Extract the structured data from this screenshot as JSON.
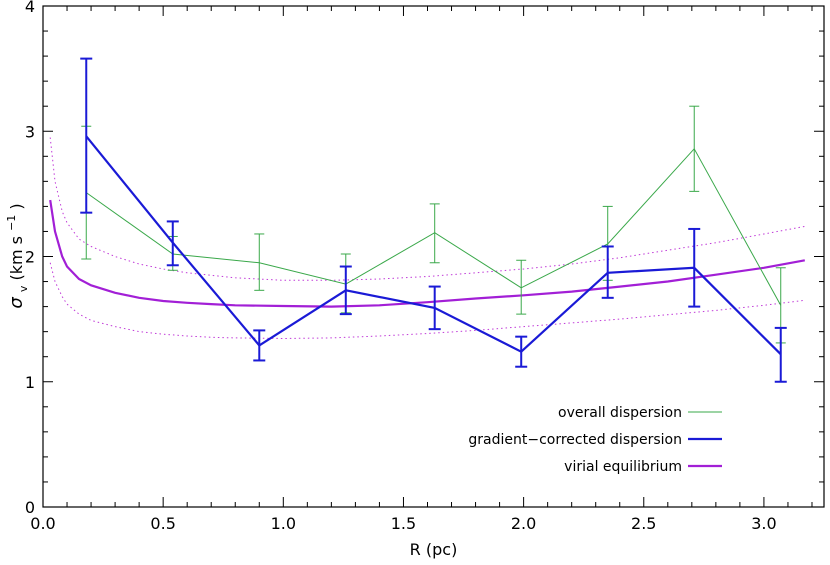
{
  "chart_data": {
    "type": "line",
    "title": "",
    "xlabel": "R (pc)",
    "ylabel": {
      "symbol": "σ",
      "subscript": "v",
      "units_open": " (km s",
      "units_exp": "−1",
      "units_close": ")"
    },
    "xlim": [
      0.0,
      3.25
    ],
    "ylim": [
      0,
      4
    ],
    "x_ticks": [
      0.0,
      0.5,
      1.0,
      1.5,
      2.0,
      2.5,
      3.0
    ],
    "x_tick_labels": [
      "0.0",
      "0.5",
      "1.0",
      "1.5",
      "2.0",
      "2.5",
      "3.0"
    ],
    "y_ticks": [
      0,
      1,
      2,
      3,
      4
    ],
    "y_tick_labels": [
      "0",
      "1",
      "2",
      "3",
      "4"
    ],
    "grid": false,
    "legend_position": "bottom-right",
    "series": [
      {
        "name": "overall dispersion",
        "color": "#3aa84a",
        "style": "solid-thin",
        "points": [
          {
            "x": 0.18,
            "y": 2.51,
            "err_lo": 1.98,
            "err_hi": 3.04
          },
          {
            "x": 0.54,
            "y": 2.02,
            "err_lo": 1.89,
            "err_hi": 2.16
          },
          {
            "x": 0.9,
            "y": 1.95,
            "err_lo": 1.73,
            "err_hi": 2.18
          },
          {
            "x": 1.26,
            "y": 1.78,
            "err_lo": 1.55,
            "err_hi": 2.02
          },
          {
            "x": 1.63,
            "y": 2.19,
            "err_lo": 1.95,
            "err_hi": 2.42
          },
          {
            "x": 1.99,
            "y": 1.75,
            "err_lo": 1.54,
            "err_hi": 1.97
          },
          {
            "x": 2.35,
            "y": 2.1,
            "err_lo": 1.81,
            "err_hi": 2.4
          },
          {
            "x": 2.71,
            "y": 2.86,
            "err_lo": 2.52,
            "err_hi": 3.2
          },
          {
            "x": 3.07,
            "y": 1.61,
            "err_lo": 1.31,
            "err_hi": 1.91
          }
        ]
      },
      {
        "name": "gradient−corrected dispersion",
        "color": "#1a1ad6",
        "style": "solid-thick",
        "points": [
          {
            "x": 0.18,
            "y": 2.96,
            "err_lo": 2.35,
            "err_hi": 3.58
          },
          {
            "x": 0.54,
            "y": 2.11,
            "err_lo": 1.93,
            "err_hi": 2.28
          },
          {
            "x": 0.9,
            "y": 1.29,
            "err_lo": 1.17,
            "err_hi": 1.41
          },
          {
            "x": 1.26,
            "y": 1.73,
            "err_lo": 1.54,
            "err_hi": 1.92
          },
          {
            "x": 1.63,
            "y": 1.59,
            "err_lo": 1.42,
            "err_hi": 1.76
          },
          {
            "x": 1.99,
            "y": 1.24,
            "err_lo": 1.12,
            "err_hi": 1.36
          },
          {
            "x": 2.35,
            "y": 1.87,
            "err_lo": 1.67,
            "err_hi": 2.08
          },
          {
            "x": 2.71,
            "y": 1.91,
            "err_lo": 1.6,
            "err_hi": 2.22
          },
          {
            "x": 3.07,
            "y": 1.22,
            "err_lo": 1.0,
            "err_hi": 1.43
          }
        ]
      },
      {
        "name": "virial equilibrium",
        "color": "#a21fd6",
        "style": "solid-thick",
        "x": [
          0.03,
          0.05,
          0.08,
          0.1,
          0.15,
          0.2,
          0.3,
          0.4,
          0.5,
          0.6,
          0.7,
          0.8,
          1.0,
          1.2,
          1.4,
          1.6,
          1.8,
          2.0,
          2.2,
          2.4,
          2.6,
          2.8,
          3.0,
          3.17
        ],
        "values": [
          2.45,
          2.2,
          2.0,
          1.92,
          1.82,
          1.77,
          1.71,
          1.67,
          1.645,
          1.63,
          1.62,
          1.61,
          1.605,
          1.6,
          1.61,
          1.635,
          1.665,
          1.69,
          1.72,
          1.76,
          1.8,
          1.855,
          1.91,
          1.97
        ]
      },
      {
        "name": "",
        "color": "#c03ad8",
        "style": "dotted",
        "x": [
          0.03,
          0.05,
          0.08,
          0.1,
          0.15,
          0.2,
          0.3,
          0.4,
          0.5,
          0.6,
          0.7,
          0.8,
          1.0,
          1.2,
          1.4,
          1.6,
          1.8,
          2.0,
          2.2,
          2.4,
          2.6,
          2.8,
          3.0,
          3.17
        ],
        "values": [
          2.95,
          2.6,
          2.36,
          2.27,
          2.14,
          2.08,
          2.0,
          1.94,
          1.9,
          1.87,
          1.85,
          1.83,
          1.81,
          1.81,
          1.82,
          1.84,
          1.87,
          1.9,
          1.94,
          1.99,
          2.05,
          2.11,
          2.18,
          2.24
        ]
      },
      {
        "name": "",
        "color": "#c03ad8",
        "style": "dotted",
        "x": [
          0.03,
          0.05,
          0.08,
          0.1,
          0.15,
          0.2,
          0.3,
          0.4,
          0.5,
          0.6,
          0.7,
          0.8,
          1.0,
          1.2,
          1.4,
          1.6,
          1.8,
          2.0,
          2.2,
          2.4,
          2.6,
          2.8,
          3.0,
          3.17
        ],
        "values": [
          1.95,
          1.8,
          1.68,
          1.62,
          1.54,
          1.49,
          1.44,
          1.4,
          1.38,
          1.365,
          1.355,
          1.35,
          1.345,
          1.35,
          1.365,
          1.385,
          1.41,
          1.44,
          1.47,
          1.5,
          1.535,
          1.57,
          1.61,
          1.65
        ]
      }
    ]
  }
}
